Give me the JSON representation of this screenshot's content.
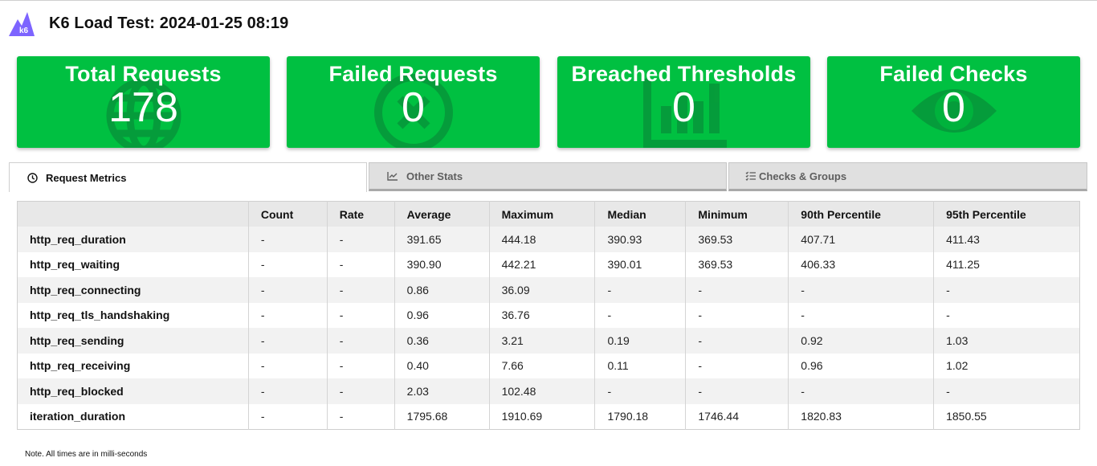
{
  "header": {
    "logo_text": "k6",
    "title": "K6 Load Test: 2024-01-25 08:19"
  },
  "cards": [
    {
      "label": "Total Requests",
      "value": "178",
      "icon": "globe-icon"
    },
    {
      "label": "Failed Requests",
      "value": "0",
      "icon": "x-circle-icon"
    },
    {
      "label": "Breached Thresholds",
      "value": "0",
      "icon": "bar-chart-icon"
    },
    {
      "label": "Failed Checks",
      "value": "0",
      "icon": "eye-icon"
    }
  ],
  "colors": {
    "card_background": "#00c041",
    "logo_background": "#7d64ff"
  },
  "tabs": [
    {
      "label": "Request Metrics",
      "icon": "clock-icon",
      "active": true
    },
    {
      "label": "Other Stats",
      "icon": "line-chart-icon",
      "active": false
    },
    {
      "label": "Checks & Groups",
      "icon": "checklist-icon",
      "active": false
    }
  ],
  "table": {
    "headers": [
      "",
      "Count",
      "Rate",
      "Average",
      "Maximum",
      "Median",
      "Minimum",
      "90th Percentile",
      "95th Percentile"
    ],
    "rows": [
      [
        "http_req_duration",
        "-",
        "-",
        "391.65",
        "444.18",
        "390.93",
        "369.53",
        "407.71",
        "411.43"
      ],
      [
        "http_req_waiting",
        "-",
        "-",
        "390.90",
        "442.21",
        "390.01",
        "369.53",
        "406.33",
        "411.25"
      ],
      [
        "http_req_connecting",
        "-",
        "-",
        "0.86",
        "36.09",
        "-",
        "-",
        "-",
        "-"
      ],
      [
        "http_req_tls_handshaking",
        "-",
        "-",
        "0.96",
        "36.76",
        "-",
        "-",
        "-",
        "-"
      ],
      [
        "http_req_sending",
        "-",
        "-",
        "0.36",
        "3.21",
        "0.19",
        "-",
        "0.92",
        "1.03"
      ],
      [
        "http_req_receiving",
        "-",
        "-",
        "0.40",
        "7.66",
        "0.11",
        "-",
        "0.96",
        "1.02"
      ],
      [
        "http_req_blocked",
        "-",
        "-",
        "2.03",
        "102.48",
        "-",
        "-",
        "-",
        "-"
      ],
      [
        "iteration_duration",
        "-",
        "-",
        "1795.68",
        "1910.69",
        "1790.18",
        "1746.44",
        "1820.83",
        "1850.55"
      ]
    ]
  },
  "note": "Note. All times are in milli-seconds"
}
